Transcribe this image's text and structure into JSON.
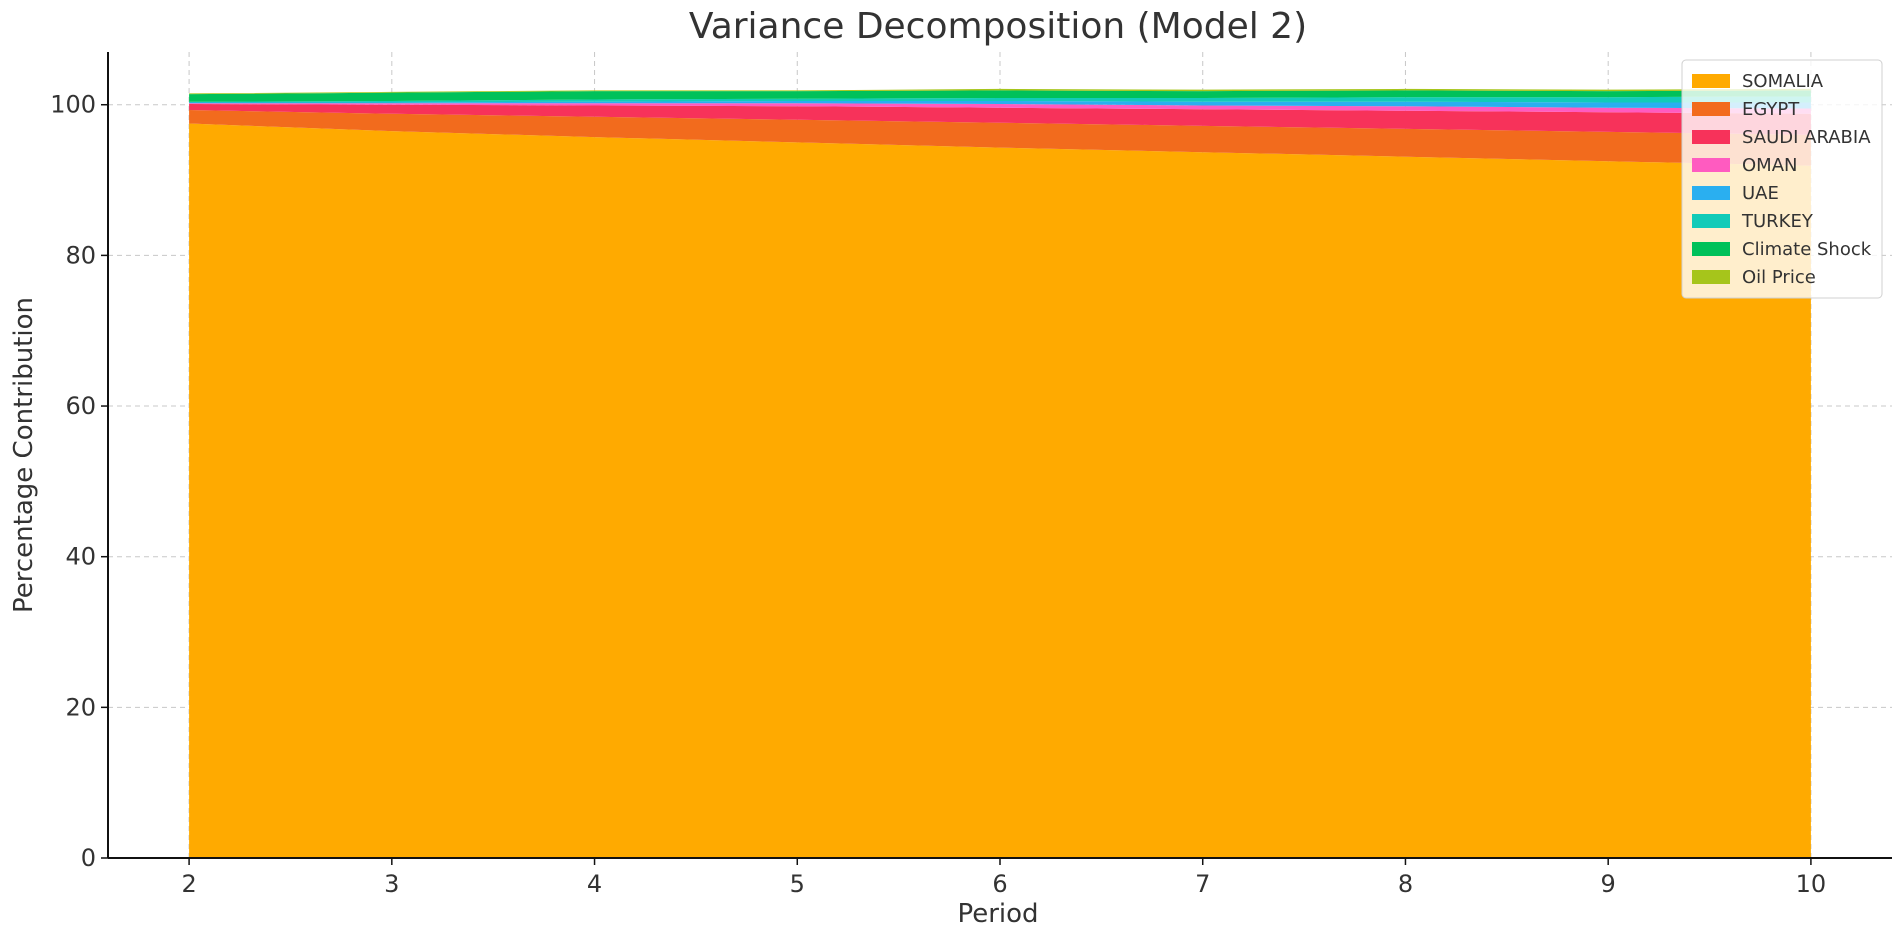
{
  "chart_data": {
    "type": "area",
    "stacked": true,
    "title": "Variance Decomposition (Model 2)",
    "xlabel": "Period",
    "ylabel": "Percentage Contribution",
    "x": [
      2,
      3,
      4,
      5,
      6,
      7,
      8,
      9,
      10
    ],
    "xlim": [
      1.6,
      10.4
    ],
    "ylim": [
      0,
      107
    ],
    "xticks": [
      "2",
      "3",
      "4",
      "5",
      "6",
      "7",
      "8",
      "9",
      "10"
    ],
    "yticks": [
      "0",
      "20",
      "40",
      "60",
      "80",
      "100"
    ],
    "grid": true,
    "legend_position": "top-right",
    "series": [
      {
        "name": "SOMALIA",
        "color": "#FFAA00",
        "values": [
          97.5,
          96.5,
          95.7,
          95.0,
          94.3,
          93.7,
          93.1,
          92.5,
          91.9
        ]
      },
      {
        "name": "EGYPT",
        "color": "#F26B1D",
        "values": [
          1.8,
          2.3,
          2.7,
          3.0,
          3.3,
          3.5,
          3.7,
          3.9,
          4.1
        ]
      },
      {
        "name": "SAUDI ARABIA",
        "color": "#F7325A",
        "values": [
          0.8,
          1.2,
          1.5,
          1.8,
          2.0,
          2.2,
          2.4,
          2.6,
          2.8
        ]
      },
      {
        "name": "OMAN",
        "color": "#FF5BC0",
        "values": [
          0.1,
          0.2,
          0.3,
          0.4,
          0.5,
          0.5,
          0.6,
          0.6,
          0.7
        ]
      },
      {
        "name": "UAE",
        "color": "#2AAFF0",
        "values": [
          0.1,
          0.1,
          0.2,
          0.3,
          0.4,
          0.5,
          0.6,
          0.7,
          0.8
        ]
      },
      {
        "name": "TURKEY",
        "color": "#12CBB8",
        "values": [
          0.1,
          0.2,
          0.3,
          0.3,
          0.4,
          0.5,
          0.6,
          0.7,
          0.8
        ]
      },
      {
        "name": "Climate Shock",
        "color": "#00C15A",
        "values": [
          1.0,
          1.1,
          1.1,
          1.0,
          1.0,
          0.9,
          0.9,
          0.8,
          0.8
        ]
      },
      {
        "name": "Oil Price",
        "color": "#A6C51B",
        "values": [
          0.1,
          0.1,
          0.1,
          0.1,
          0.2,
          0.2,
          0.2,
          0.2,
          0.2
        ]
      }
    ]
  }
}
